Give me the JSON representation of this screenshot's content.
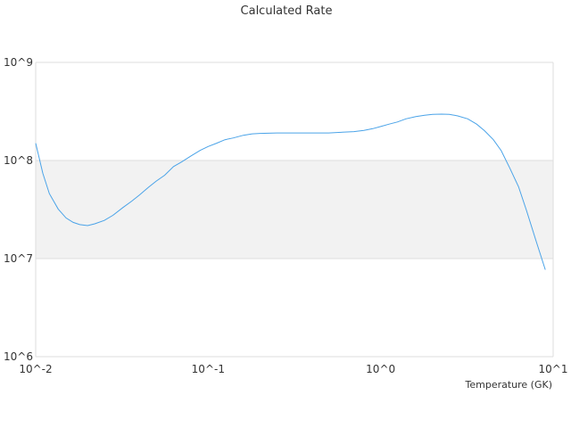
{
  "chart_data": {
    "type": "line",
    "title": "Calculated Rate",
    "xlabel": "Temperature (GK)",
    "ylabel": "",
    "x_scale": "log",
    "y_scale": "log",
    "xlim": [
      0.01,
      10
    ],
    "ylim": [
      1000000,
      1000000000
    ],
    "x_ticks": [
      {
        "value": 0.01,
        "label": "10^-2"
      },
      {
        "value": 0.1,
        "label": "10^-1"
      },
      {
        "value": 1,
        "label": "10^0"
      },
      {
        "value": 10,
        "label": "10^1"
      }
    ],
    "y_ticks": [
      {
        "value": 1000000,
        "label": "10^6"
      },
      {
        "value": 10000000,
        "label": "10^7"
      },
      {
        "value": 100000000,
        "label": "10^8"
      },
      {
        "value": 1000000000,
        "label": "10^9"
      }
    ],
    "grid": true,
    "legend": "none",
    "band_color": "#f2f2f2",
    "line_color": "#4aa3e8",
    "series": [
      {
        "x": [
          0.01,
          0.011,
          0.012,
          0.0135,
          0.015,
          0.0165,
          0.018,
          0.02,
          0.022,
          0.025,
          0.028,
          0.032,
          0.036,
          0.04,
          0.045,
          0.05,
          0.056,
          0.063,
          0.07,
          0.08,
          0.09,
          0.1,
          0.112,
          0.125,
          0.14,
          0.16,
          0.18,
          0.2,
          0.25,
          0.3,
          0.35,
          0.4,
          0.5,
          0.6,
          0.7,
          0.8,
          0.9,
          1.0,
          1.12,
          1.25,
          1.4,
          1.6,
          1.8,
          2.0,
          2.25,
          2.5,
          2.8,
          3.2,
          3.6,
          4.0,
          4.5,
          5.0,
          5.6,
          6.3,
          7.0,
          8.0,
          9.0
        ],
        "y": [
          150000000,
          74000000,
          46000000,
          32000000,
          26000000,
          23400000,
          22200000,
          21700000,
          22600000,
          24500000,
          27600000,
          33100000,
          38500000,
          44600000,
          53200000,
          61700000,
          70800000,
          86700000,
          96600000,
          112000000,
          127000000,
          139000000,
          150000000,
          163000000,
          170000000,
          181000000,
          187000000,
          189000000,
          191000000,
          191000000,
          191000000,
          191000000,
          191000000,
          194000000,
          197000000,
          203000000,
          211000000,
          222000000,
          235000000,
          247000000,
          266000000,
          280000000,
          289000000,
          295000000,
          297000000,
          296000000,
          285000000,
          266000000,
          235000000,
          201000000,
          163000000,
          126000000,
          84000000,
          54000000,
          31000000,
          14700000,
          7700000
        ]
      }
    ]
  }
}
